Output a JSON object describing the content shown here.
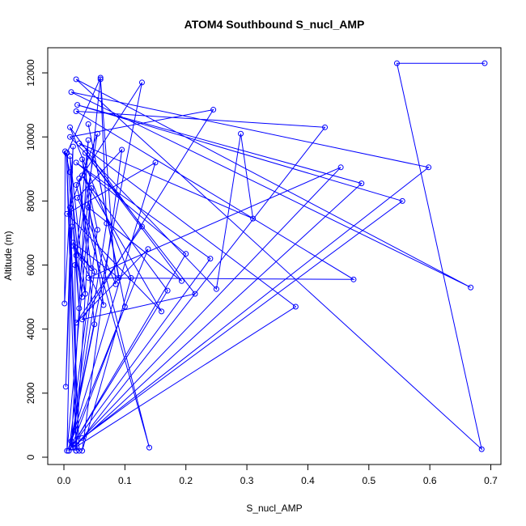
{
  "chart_data": {
    "type": "line",
    "title": "ATOM4 Southbound S_nucl_AMP",
    "xlabel": "S_nucl_AMP",
    "ylabel": "Altitude (m)",
    "xlim": [
      0,
      0.7
    ],
    "ylim": [
      0,
      12300
    ],
    "xticks": [
      0.0,
      0.1,
      0.2,
      0.3,
      0.4,
      0.5,
      0.6,
      0.7
    ],
    "xtick_labels": [
      "0.0",
      "0.1",
      "0.2",
      "0.3",
      "0.4",
      "0.5",
      "0.6",
      "0.7"
    ],
    "yticks": [
      0,
      2000,
      4000,
      6000,
      8000,
      10000,
      12000
    ],
    "ytick_labels": [
      "0",
      "2000",
      "4000",
      "6000",
      "8000",
      "10000",
      "12000"
    ],
    "grid": false,
    "series_color": "#0000ff",
    "marker": "open-circle",
    "series": [
      {
        "x": [
          0.69,
          0.546,
          0.685,
          0.02,
          0.667,
          0.012,
          0.598,
          0.03,
          0.555,
          0.022,
          0.488,
          0.015,
          0.454,
          0.04,
          0.475,
          0.02,
          0.428,
          0.018,
          0.38,
          0.025,
          0.31,
          0.29,
          0.25,
          0.01,
          0.245,
          0.03,
          0.215,
          0.035,
          0.193,
          0.04,
          0.14,
          0.02,
          0.128,
          0.008,
          0.24,
          0.02,
          0.2,
          0.015,
          0.17,
          0.03,
          0.16,
          0.005,
          0.15,
          0.012,
          0.138,
          0.02,
          0.128,
          0.01,
          0.11,
          0.03,
          0.095,
          0.022,
          0.085,
          0.06,
          0.07,
          0.012,
          0.1,
          0.04,
          0.09,
          0.015,
          0.065,
          0.03,
          0.055,
          0.008,
          0.05,
          0.025,
          0.045,
          0.015,
          0.035,
          0.01,
          0.025,
          0.005,
          0.06,
          0.03,
          0.05,
          0.012,
          0.04,
          0.02,
          0.03,
          0.01,
          0.002,
          0.001,
          0.015,
          0.003,
          0.013,
          0.005,
          0.045,
          0.02,
          0.018,
          0.055,
          0.01,
          0.025,
          0.004,
          0.02
        ],
        "y": [
          12300,
          12300,
          250,
          11800,
          5300,
          11400,
          9050,
          600,
          8000,
          11000,
          8550,
          300,
          9050,
          5600,
          5550,
          10800,
          10300,
          300,
          4700,
          9800,
          7450,
          10100,
          5250,
          10000,
          10850,
          4300,
          5100,
          9500,
          5500,
          7800,
          300,
          8500,
          11700,
          200,
          6200,
          9200,
          6350,
          400,
          5200,
          8800,
          4550,
          7600,
          9200,
          500,
          6500,
          4200,
          7200,
          10300,
          5600,
          200,
          9600,
          8100,
          5400,
          11800,
          7300,
          300,
          4700,
          10400,
          5600,
          6700,
          4750,
          9300,
          7100,
          200,
          4150,
          8700,
          5900,
          6600,
          5100,
          9400,
          4650,
          9500,
          11850,
          6200,
          5800,
          300,
          9900,
          6300,
          5000,
          8900,
          9550,
          4800,
          9700,
          2200,
          7200,
          200,
          8400,
          200,
          6000,
          10100,
          7800,
          200,
          9500,
          200
        ]
      }
    ]
  }
}
